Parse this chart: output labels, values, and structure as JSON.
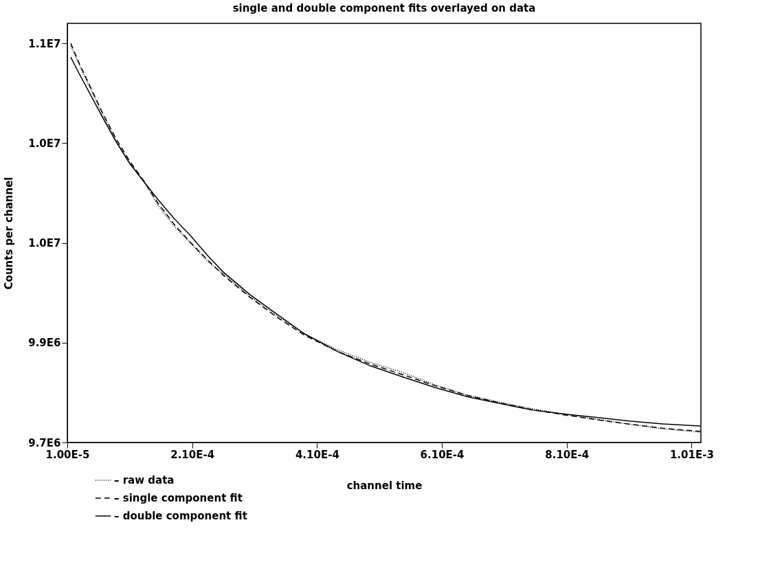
{
  "chart_data": {
    "type": "line",
    "title": "single and double component fits overlayed on data",
    "xlabel": "channel time",
    "ylabel": "Counts per channel",
    "xlim": [
      1e-05,
      0.001025
    ],
    "xticks": [
      {
        "value": 1e-05,
        "label": "1.00E-5"
      },
      {
        "value": 0.00021,
        "label": "2.10E-4"
      },
      {
        "value": 0.00041,
        "label": "4.10E-4"
      },
      {
        "value": 0.00061,
        "label": "6.10E-4"
      },
      {
        "value": 0.00081,
        "label": "8.10E-4"
      },
      {
        "value": 0.00101,
        "label": "1.01E-3"
      }
    ],
    "ylim": [
      9700000,
      10645000
    ],
    "yticks": [
      {
        "value": 9700000,
        "label": "9.7E6"
      },
      {
        "value": 9925000,
        "label": "9.9E6"
      },
      {
        "value": 10150000,
        "label": "1.0E7"
      },
      {
        "value": 10375000,
        "label": "1.0E7"
      },
      {
        "value": 10600000,
        "label": "1.1E7"
      }
    ],
    "grid": false,
    "legend": "bottom left",
    "marker": "none",
    "x": [
      1.54e-05,
      2.96e-05,
      4.75e-05,
      6.53e-05,
      8.76e-05,
      0.00011,
      0.000132,
      0.000155,
      0.000181,
      0.000208,
      0.000235,
      0.00026,
      0.000302,
      0.000344,
      0.000391,
      0.000443,
      0.000495,
      0.000547,
      0.000599,
      0.000651,
      0.000703,
      0.000755,
      0.000807,
      0.00086,
      0.000912,
      0.000964,
      0.001024
    ],
    "series": [
      {
        "name": "– raw data",
        "color": "#000000",
        "line_style": "dotted",
        "values": [
          10594000,
          10550000,
          10496000,
          10443000,
          10382000,
          10329000,
          10289000,
          10235000,
          10188000,
          10148000,
          10108000,
          10080000,
          10030000,
          9987000,
          9944000,
          9909000,
          9881000,
          9858000,
          9830000,
          9807000,
          9791000,
          9776000,
          9764000,
          9752000,
          9741000,
          9731000,
          9723000
        ]
      },
      {
        "name": "– single component fit",
        "color": "#000000",
        "line_style": "dashed",
        "values": [
          10600000,
          10553000,
          10500000,
          10446000,
          10386000,
          10334000,
          10291000,
          10240000,
          10192000,
          10150000,
          10111000,
          10077000,
          10028000,
          9984000,
          9941000,
          9905000,
          9877000,
          9853000,
          9828000,
          9806000,
          9789000,
          9774000,
          9762000,
          9751000,
          9741000,
          9732000,
          9725000
        ]
      },
      {
        "name": "– double component fit",
        "color": "#000000",
        "line_style": "solid",
        "values": [
          10569000,
          10530000,
          10483000,
          10436000,
          10379000,
          10329000,
          10289000,
          10248000,
          10205000,
          10165000,
          10121000,
          10084000,
          10034000,
          9991000,
          9944000,
          9905000,
          9873000,
          9848000,
          9824000,
          9803000,
          9788000,
          9773000,
          9764000,
          9756000,
          9748000,
          9742000,
          9737000
        ]
      }
    ]
  }
}
